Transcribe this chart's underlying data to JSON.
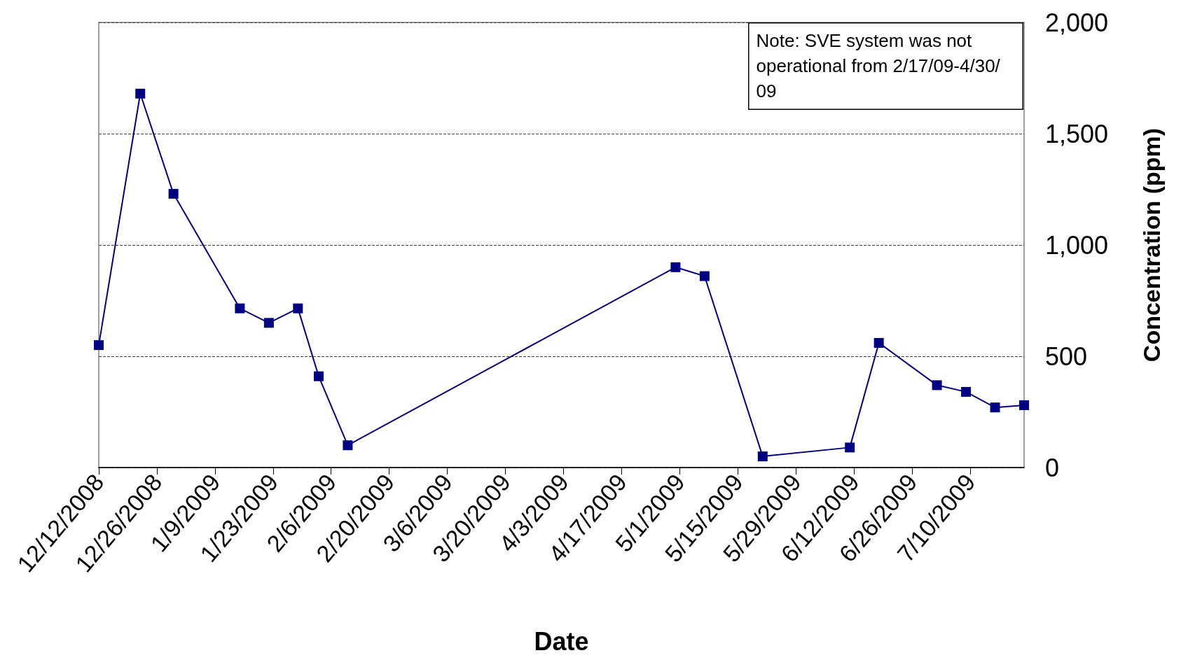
{
  "chart_data": {
    "type": "line",
    "xlabel": "Date",
    "ylabel": "Concentration (ppm)",
    "x": [
      "2008-12-12",
      "2008-12-22",
      "2008-12-30",
      "2009-01-15",
      "2009-01-22",
      "2009-01-29",
      "2009-02-03",
      "2009-02-10",
      "2009-04-30",
      "2009-05-07",
      "2009-05-21",
      "2009-06-11",
      "2009-06-18",
      "2009-07-02",
      "2009-07-09",
      "2009-07-16",
      "2009-07-23"
    ],
    "series": [
      {
        "color": "#000080",
        "values": [
          550,
          1680,
          1230,
          715,
          650,
          715,
          410,
          100,
          900,
          860,
          50,
          90,
          560,
          370,
          340,
          270,
          280
        ]
      }
    ],
    "xlim": [
      "2008-12-12",
      "2009-07-23"
    ],
    "xticks": [
      {
        "value": "2008-12-12",
        "label": "12/12/2008"
      },
      {
        "value": "2008-12-26",
        "label": "12/26/2008"
      },
      {
        "value": "2009-01-09",
        "label": "1/9/2009"
      },
      {
        "value": "2009-01-23",
        "label": "1/23/2009"
      },
      {
        "value": "2009-02-06",
        "label": "2/6/2009"
      },
      {
        "value": "2009-02-20",
        "label": "2/20/2009"
      },
      {
        "value": "2009-03-06",
        "label": "3/6/2009"
      },
      {
        "value": "2009-03-20",
        "label": "3/20/2009"
      },
      {
        "value": "2009-04-03",
        "label": "4/3/2009"
      },
      {
        "value": "2009-04-17",
        "label": "4/17/2009"
      },
      {
        "value": "2009-05-01",
        "label": "5/1/2009"
      },
      {
        "value": "2009-05-15",
        "label": "5/15/2009"
      },
      {
        "value": "2009-05-29",
        "label": "5/29/2009"
      },
      {
        "value": "2009-06-12",
        "label": "6/12/2009"
      },
      {
        "value": "2009-06-26",
        "label": "6/26/2009"
      },
      {
        "value": "2009-07-10",
        "label": "7/10/2009"
      }
    ],
    "ylim": [
      0,
      2000
    ],
    "yticks": [
      0,
      500,
      {
        "value": 1000,
        "label": "1,000"
      },
      {
        "value": 1500,
        "label": "1,500"
      },
      {
        "value": 2000,
        "label": "2,000"
      }
    ],
    "grid": "y",
    "marker": "square",
    "line_style": "solid",
    "annotations": [
      "Note: SVE system was not operational from 2/17/09-4/30/09"
    ]
  }
}
